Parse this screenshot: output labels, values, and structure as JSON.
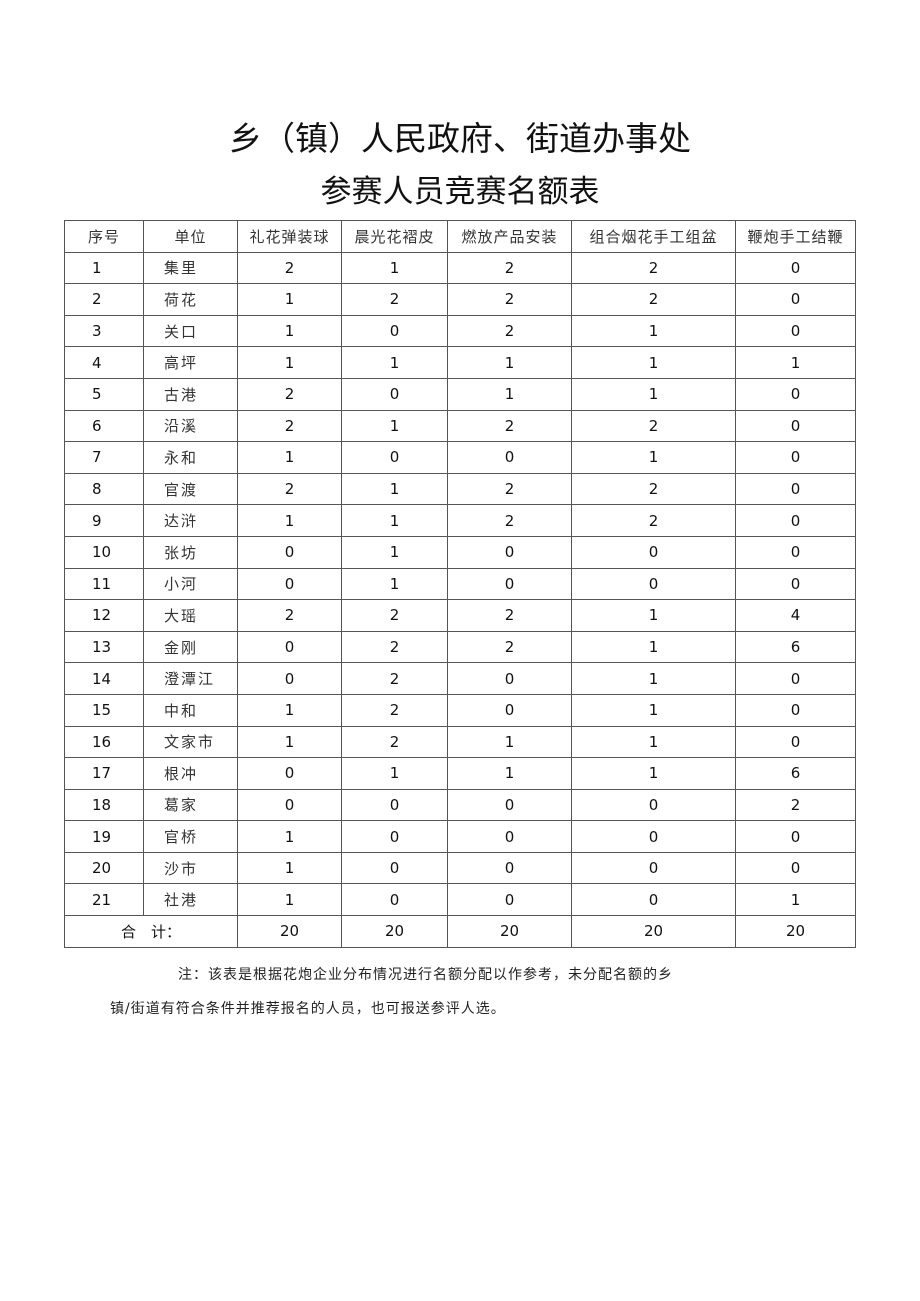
{
  "title_line1": "乡（镇）人民政府、街道办事处",
  "title_line2": "参赛人员竞赛名额表",
  "headers": [
    "序号",
    "单位",
    "礼花弹装球",
    "晨光花褶皮",
    "燃放产品安装",
    "组合烟花手工组盆",
    "鞭炮手工结鞭"
  ],
  "rows": [
    [
      "1",
      "集里",
      "2",
      "1",
      "2",
      "2",
      "0"
    ],
    [
      "2",
      "荷花",
      "1",
      "2",
      "2",
      "2",
      "0"
    ],
    [
      "3",
      "关口",
      "1",
      "0",
      "2",
      "1",
      "0"
    ],
    [
      "4",
      "高坪",
      "1",
      "1",
      "1",
      "1",
      "1"
    ],
    [
      "5",
      "古港",
      "2",
      "0",
      "1",
      "1",
      "0"
    ],
    [
      "6",
      "沿溪",
      "2",
      "1",
      "2",
      "2",
      "0"
    ],
    [
      "7",
      "永和",
      "1",
      "0",
      "0",
      "1",
      "0"
    ],
    [
      "8",
      "官渡",
      "2",
      "1",
      "2",
      "2",
      "0"
    ],
    [
      "9",
      "达浒",
      "1",
      "1",
      "2",
      "2",
      "0"
    ],
    [
      "10",
      "张坊",
      "0",
      "1",
      "0",
      "0",
      "0"
    ],
    [
      "11",
      "小河",
      "0",
      "1",
      "0",
      "0",
      "0"
    ],
    [
      "12",
      "大瑶",
      "2",
      "2",
      "2",
      "1",
      "4"
    ],
    [
      "13",
      "金刚",
      "0",
      "2",
      "2",
      "1",
      "6"
    ],
    [
      "14",
      "澄潭江",
      "0",
      "2",
      "0",
      "1",
      "0"
    ],
    [
      "15",
      "中和",
      "1",
      "2",
      "0",
      "1",
      "0"
    ],
    [
      "16",
      "文家市",
      "1",
      "2",
      "1",
      "1",
      "0"
    ],
    [
      "17",
      "根冲",
      "0",
      "1",
      "1",
      "1",
      "6"
    ],
    [
      "18",
      "葛家",
      "0",
      "0",
      "0",
      "0",
      "2"
    ],
    [
      "19",
      "官桥",
      "1",
      "0",
      "0",
      "0",
      "0"
    ],
    [
      "20",
      "沙市",
      "1",
      "0",
      "0",
      "0",
      "0"
    ],
    [
      "21",
      "社港",
      "1",
      "0",
      "0",
      "0",
      "1"
    ]
  ],
  "total": {
    "label": "合　计：",
    "values": [
      "20",
      "20",
      "20",
      "20",
      "20"
    ]
  },
  "note_line1": "注：该表是根据花炮企业分布情况进行名额分配以作参考，未分配名额的乡",
  "note_line2": "镇/街道有符合条件并推荐报名的人员，也可报送参评人选。"
}
